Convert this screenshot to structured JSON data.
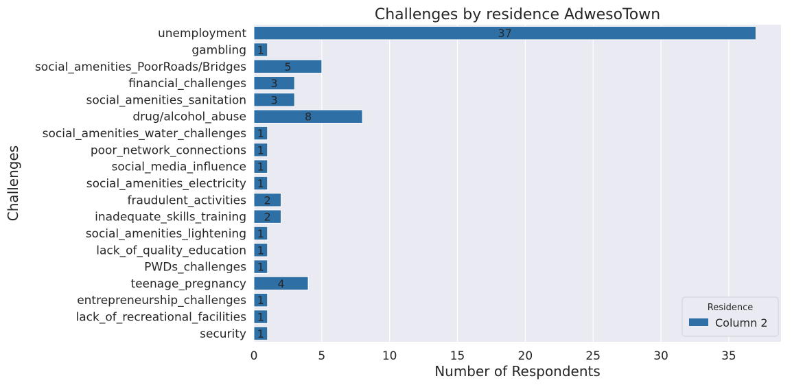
{
  "chart_data": {
    "type": "bar",
    "orientation": "horizontal",
    "title": "Challenges by residence AdwesoTown",
    "xlabel": "Number of Respondents",
    "ylabel": "Challenges",
    "xlim": [
      0,
      38.85
    ],
    "xticks": [
      0,
      5,
      10,
      15,
      20,
      25,
      30,
      35
    ],
    "grid": true,
    "legend": {
      "title": "Residence",
      "placement": "bottom-right"
    },
    "categories": [
      "unemployment",
      "gambling",
      "social_amenities_PoorRoads/Bridges",
      "financial_challenges",
      "social_amenities_sanitation",
      "drug/alcohol_abuse",
      "social_amenities_water_challenges",
      "poor_network_connections",
      "social_media_influence",
      "social_amenities_electricity",
      "fraudulent_activities",
      "inadequate_skills_training",
      "social_amenities_lightening",
      "lack_of_quality_education",
      "PWDs_challenges",
      "teenage_pregnancy",
      "entrepreneurship_challenges",
      "lack_of_recreational_facilities",
      "security"
    ],
    "series": [
      {
        "name": "Column 2",
        "values": [
          37,
          1,
          5,
          3,
          3,
          8,
          1,
          1,
          1,
          1,
          2,
          2,
          1,
          1,
          1,
          4,
          1,
          1,
          1
        ]
      }
    ],
    "colors": {
      "bar": "#2e6fa6",
      "plot_background": "#eaeaf2",
      "grid": "#ffffff",
      "text": "#262626"
    }
  }
}
